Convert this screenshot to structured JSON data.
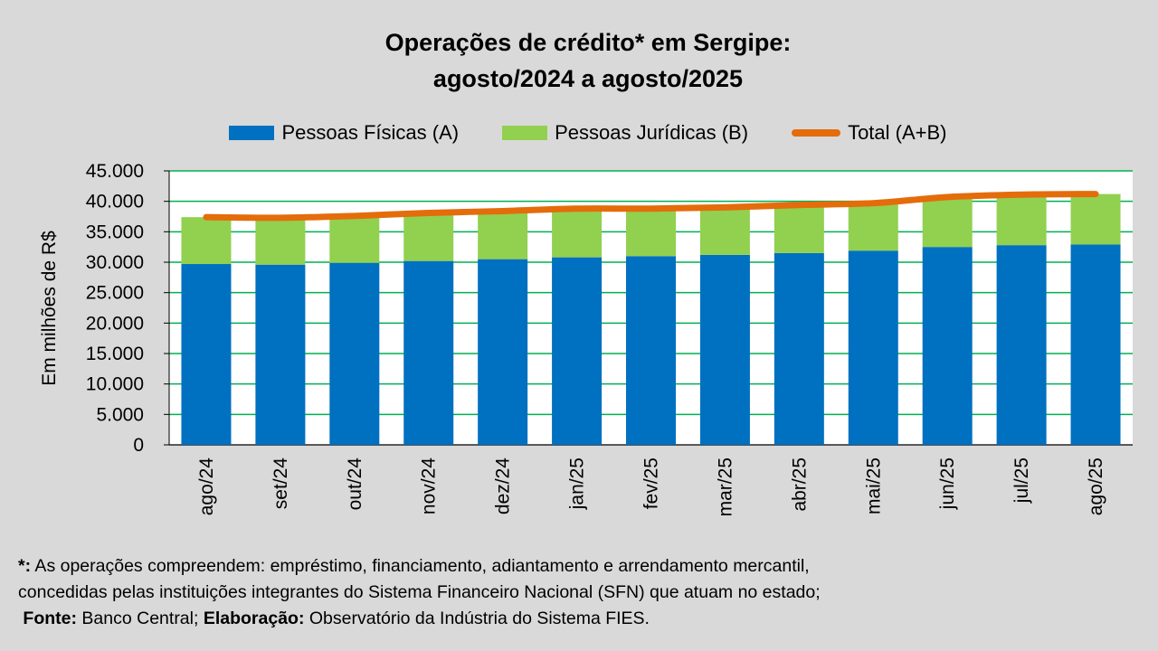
{
  "chart_data": {
    "type": "bar",
    "title": "Operações de crédito* em Sergipe:",
    "subtitle": "agosto/2024 a agosto/2025",
    "ylabel": "Em milhões de R$",
    "xlabel": "",
    "ylim": [
      0,
      45000
    ],
    "yticks": [
      "0",
      "5.000",
      "10.000",
      "15.000",
      "20.000",
      "25.000",
      "30.000",
      "35.000",
      "40.000",
      "45.000"
    ],
    "categories": [
      "ago/24",
      "set/24",
      "out/24",
      "nov/24",
      "dez/24",
      "jan/25",
      "fev/25",
      "mar/25",
      "abr/25",
      "mai/25",
      "jun/25",
      "jul/25",
      "ago/25"
    ],
    "stacked": true,
    "grid": true,
    "legend_position": "top",
    "series": [
      {
        "name": "Pessoas Físicas (A)",
        "kind": "bar",
        "color": "#0070c0",
        "values": [
          29700,
          29600,
          29900,
          30200,
          30500,
          30800,
          31000,
          31200,
          31500,
          31900,
          32500,
          32800,
          32900
        ]
      },
      {
        "name": "Pessoas Jurídicas (B)",
        "kind": "bar",
        "color": "#92d050",
        "values": [
          7700,
          7600,
          7700,
          7900,
          7900,
          8000,
          7800,
          7800,
          7900,
          7800,
          8200,
          8300,
          8300
        ]
      },
      {
        "name": "Total (A+B)",
        "kind": "line",
        "color": "#e46c0a",
        "values": [
          37400,
          37300,
          37600,
          38100,
          38400,
          38800,
          38800,
          39000,
          39400,
          39700,
          40700,
          41100,
          41200
        ]
      }
    ]
  },
  "footnote": {
    "star_mark": "*:",
    "line1": " As operações compreendem: empréstimo, financiamento, adiantamento e arrendamento mercantil,",
    "line2": "concedidas pelas instituições integrantes do Sistema Financeiro Nacional (SFN) que atuam no estado;",
    "source_label": "Fonte:",
    "source_text": " Banco Central; ",
    "elaboration_label": "Elaboração:",
    "elaboration_text": "  Observatório da Indústria do Sistema FIES."
  }
}
